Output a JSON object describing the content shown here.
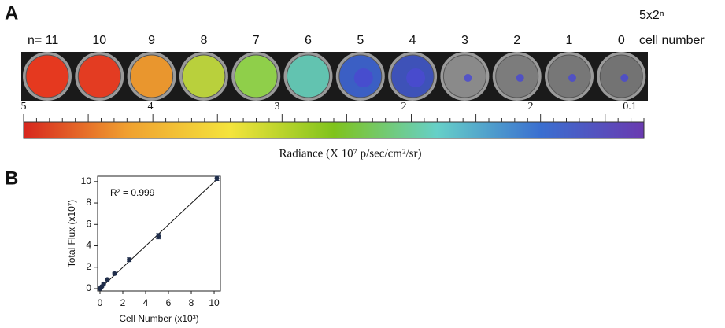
{
  "panel_a": {
    "letter": "A",
    "header_top": "5x2ⁿ",
    "header_bottom": "cell number",
    "wells": [
      {
        "label": "n= 11",
        "color": "#e5391f"
      },
      {
        "label": "10",
        "color": "#e33c22"
      },
      {
        "label": "9",
        "color": "#e9962e"
      },
      {
        "label": "8",
        "color": "#b9d03c"
      },
      {
        "label": "7",
        "color": "#8fcf4a"
      },
      {
        "label": "6",
        "color": "#62c3b0"
      },
      {
        "label": "5",
        "color": "#3b5fc4"
      },
      {
        "label": "4",
        "color": "#3e52b8"
      },
      {
        "label": "3",
        "color": "#8a8a8a"
      },
      {
        "label": "2",
        "color": "#7c7c7c"
      },
      {
        "label": "1",
        "color": "#777777"
      },
      {
        "label": "0",
        "color": "#737373"
      }
    ],
    "colorbar_labels": [
      "5",
      "4",
      "3",
      "2",
      "2",
      "0.1"
    ],
    "colorbar_colors": [
      "#d7261e",
      "#f0a030",
      "#f4e43c",
      "#7fc31c",
      "#66d0c8",
      "#3a6fd0",
      "#6a3ab0"
    ],
    "colorbar_title": "Radiance (X 10⁷ p/sec/cm²/sr)"
  },
  "chart_data": {
    "type": "scatter",
    "letter": "B",
    "x_label": "Cell Number (x10³)",
    "y_label": "Total Flux (x10⁷)",
    "annotation": "R² = 0.999",
    "xlim": [
      0,
      10.6
    ],
    "ylim": [
      0,
      10.5
    ],
    "xticks": [
      0,
      2,
      4,
      6,
      8,
      10
    ],
    "yticks": [
      0,
      2,
      4,
      6,
      8,
      10
    ],
    "color": "#1f2d4a",
    "x": [
      0.005,
      0.01,
      0.02,
      0.04,
      0.08,
      0.16,
      0.32,
      0.64,
      1.28,
      2.56,
      5.12,
      10.24
    ],
    "values": [
      0.01,
      0.02,
      0.03,
      0.05,
      0.1,
      0.2,
      0.45,
      0.85,
      1.4,
      2.7,
      4.9,
      10.3
    ],
    "errors": [
      0.02,
      0.02,
      0.03,
      0.03,
      0.05,
      0.06,
      0.08,
      0.1,
      0.12,
      0.18,
      0.25,
      0.2
    ],
    "trendline": {
      "x": [
        0,
        10.24
      ],
      "y": [
        0,
        10.2
      ]
    }
  }
}
